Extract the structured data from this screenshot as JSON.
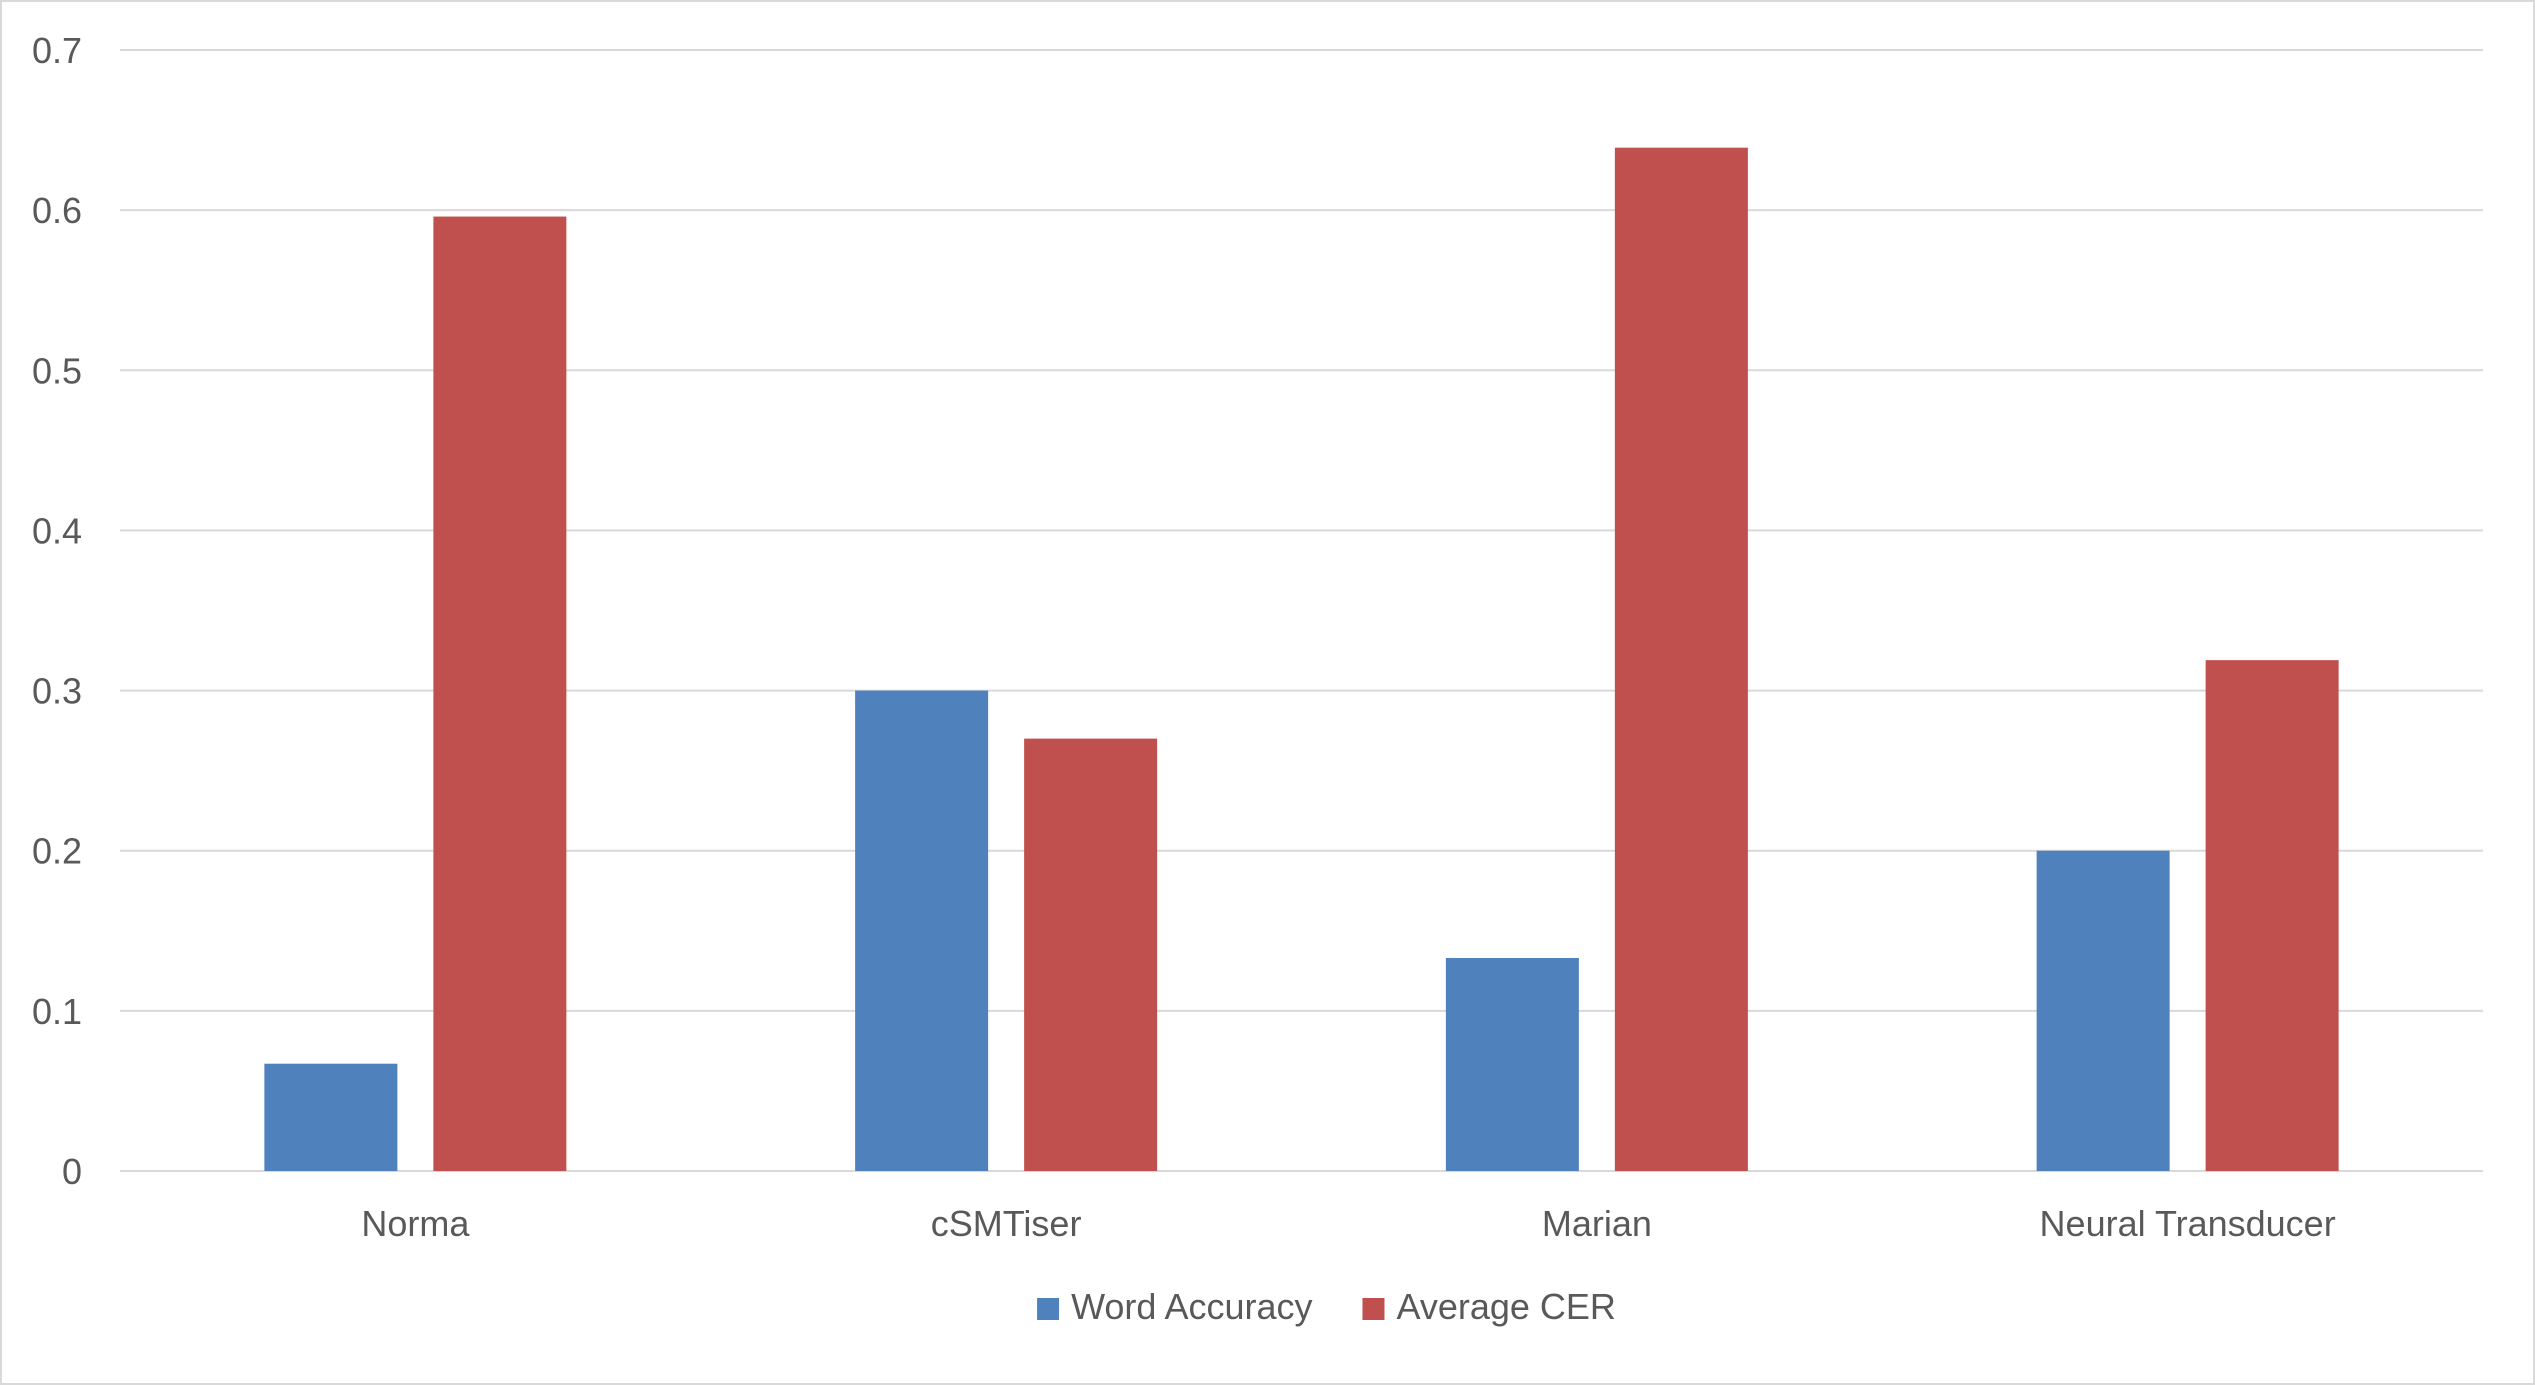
{
  "chart_data": {
    "type": "bar",
    "categories": [
      "Norma",
      "cSMTiser",
      "Marian",
      "Neural Transducer"
    ],
    "series": [
      {
        "name": "Word Accuracy",
        "values": [
          0.067,
          0.3,
          0.133,
          0.2
        ],
        "color": "#4f81bd"
      },
      {
        "name": "Average CER",
        "values": [
          0.596,
          0.27,
          0.639,
          0.319
        ],
        "color": "#c0504d"
      }
    ],
    "y_ticks": [
      "0",
      "0.1",
      "0.2",
      "0.3",
      "0.4",
      "0.5",
      "0.6",
      "0.7"
    ],
    "ylim": [
      0,
      0.7
    ],
    "grid": true,
    "legend_position": "bottom-center",
    "gridline_color": "#d9d9d9"
  }
}
